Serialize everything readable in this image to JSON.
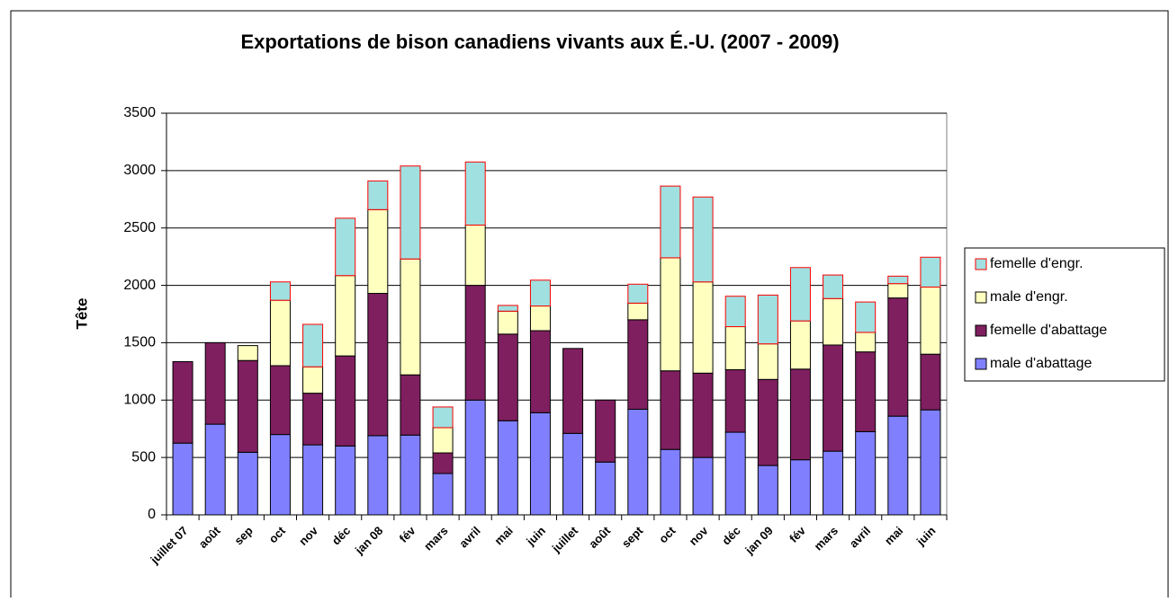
{
  "chart_data": {
    "type": "stacked_bar",
    "title": "Exportations de bison canadiens vivants aux É.-U. (2007 - 2009)",
    "ylabel": "Tête",
    "categories": [
      "juillet 07",
      "août",
      "sep",
      "oct",
      "nov",
      "déc",
      "jan 08",
      "fév",
      "mars",
      "avril",
      "mai",
      "juin",
      "juillet",
      "août",
      "sept",
      "oct",
      "nov",
      "déc",
      "jan 09",
      "fév",
      "mars",
      "avril",
      "mai",
      "juin"
    ],
    "series": [
      {
        "name": "male d'abattage",
        "color": "#8080ff",
        "edgecolor": "#000000",
        "values": [
          625,
          790,
          545,
          700,
          610,
          600,
          690,
          695,
          360,
          1000,
          820,
          890,
          710,
          460,
          920,
          570,
          500,
          720,
          430,
          480,
          555,
          725,
          860,
          915
        ]
      },
      {
        "name": "femelle d'abattage",
        "color": "#7f1f5f",
        "edgecolor": "#000000",
        "values": [
          710,
          710,
          800,
          600,
          450,
          785,
          1240,
          525,
          180,
          1000,
          755,
          715,
          740,
          540,
          780,
          685,
          735,
          545,
          750,
          790,
          925,
          695,
          1030,
          485
        ]
      },
      {
        "name": "male d'engr.",
        "color": "#ffffc0",
        "edgecolor": "#000000",
        "values": [
          0,
          0,
          130,
          570,
          230,
          700,
          730,
          1010,
          220,
          525,
          200,
          215,
          0,
          0,
          145,
          985,
          795,
          375,
          310,
          420,
          405,
          170,
          125,
          585
        ]
      },
      {
        "name": "femelle d'engr.",
        "color": "#a0e0e0",
        "edgecolor": "#ff0000",
        "values": [
          0,
          0,
          0,
          160,
          370,
          500,
          250,
          810,
          180,
          550,
          50,
          225,
          0,
          0,
          165,
          625,
          740,
          265,
          425,
          465,
          205,
          265,
          65,
          260
        ]
      }
    ],
    "ylim": [
      0,
      3500
    ],
    "yticks": [
      0,
      500,
      1000,
      1500,
      2000,
      2500,
      3000,
      3500
    ],
    "grid": true,
    "legend": "right"
  }
}
